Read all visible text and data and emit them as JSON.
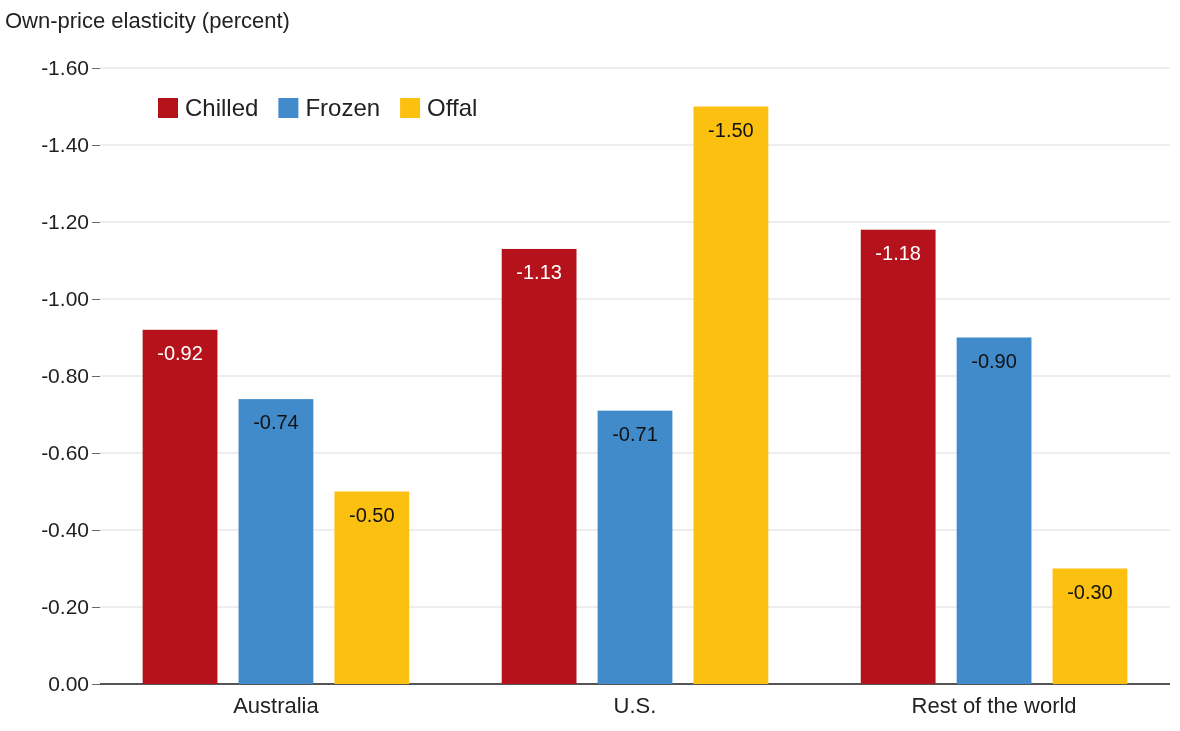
{
  "chart_data": {
    "type": "bar",
    "ylabel": "Own-price elasticity (percent)",
    "categories": [
      "Australia",
      "U.S.",
      "Rest of the world"
    ],
    "series": [
      {
        "name": "Chilled",
        "color": "#b5121b",
        "values": [
          -0.92,
          -1.13,
          -1.18
        ],
        "value_labels": [
          "-0.92",
          "-1.13",
          "-1.18"
        ]
      },
      {
        "name": "Frozen",
        "color": "#428bca",
        "values": [
          -0.74,
          -0.71,
          -0.9
        ],
        "value_labels": [
          "-0.74",
          "-0.71",
          "-0.90"
        ]
      },
      {
        "name": "Offal",
        "color": "#fcc010",
        "values": [
          -0.5,
          -1.5,
          -0.3
        ],
        "value_labels": [
          "-0.50",
          "-1.50",
          "-0.30"
        ]
      }
    ],
    "ylim": [
      0,
      -1.6
    ],
    "yticks": [
      {
        "value": 0,
        "label": "0.00"
      },
      {
        "value": -0.2,
        "label": "-0.20"
      },
      {
        "value": -0.4,
        "label": "-0.40"
      },
      {
        "value": -0.6,
        "label": "-0.60"
      },
      {
        "value": -0.8,
        "label": "-0.80"
      },
      {
        "value": -1,
        "label": "-1.00"
      },
      {
        "value": -1.2,
        "label": "-1.20"
      },
      {
        "value": -1.4,
        "label": "-1.40"
      },
      {
        "value": -1.6,
        "label": "-1.60"
      }
    ],
    "grid": "y",
    "legend": "top left"
  }
}
